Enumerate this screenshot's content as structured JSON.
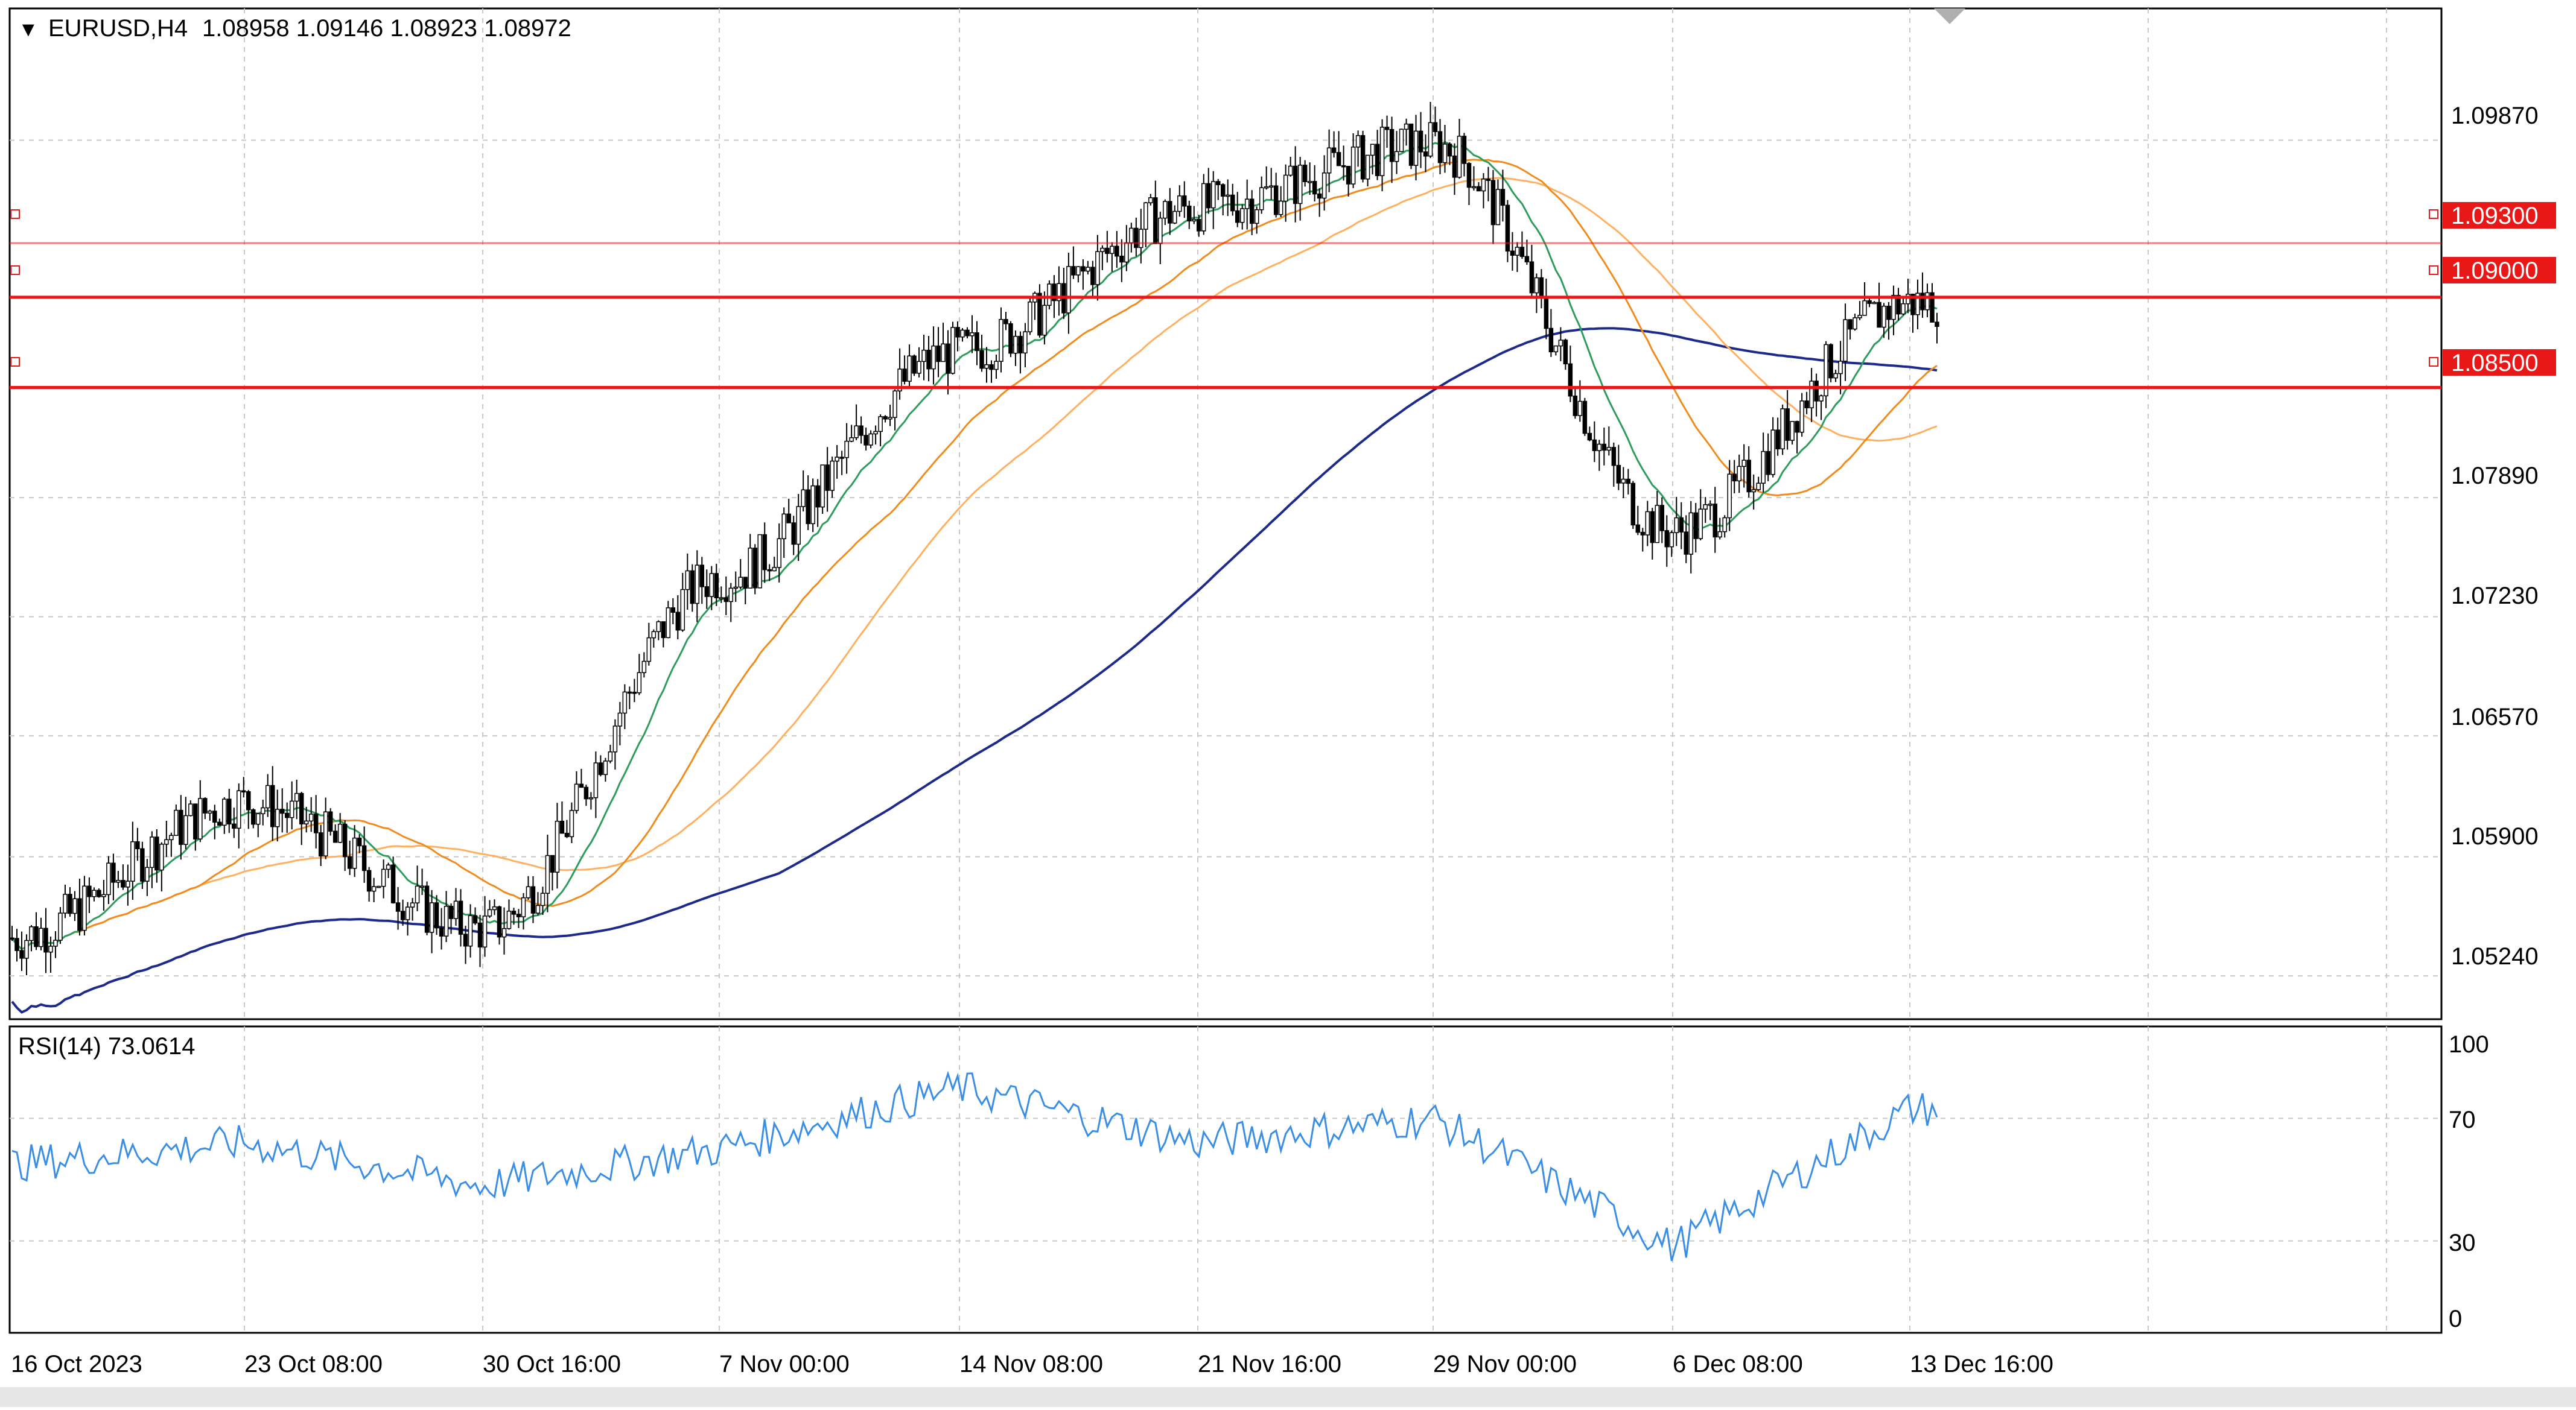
{
  "header": {
    "symbol": "EURUSD,H4",
    "ohlc": "1.08958 1.09146 1.08923 1.08972"
  },
  "rsi_header": {
    "label": "RSI(14) 73.0614"
  },
  "price_axis_labels": [
    "1.09870",
    "1.07890",
    "1.07230",
    "1.06570",
    "1.05900",
    "1.05240"
  ],
  "rsi_axis_labels": [
    "100",
    "70",
    "30",
    "0"
  ],
  "level_tags": [
    "1.09300",
    "1.09000",
    "1.08500"
  ],
  "time_axis_labels": [
    "16 Oct 2023",
    "23 Oct 08:00",
    "30 Oct 16:00",
    "7 Nov 00:00",
    "14 Nov 08:00",
    "21 Nov 16:00",
    "29 Nov 00:00",
    "6 Dec 08:00",
    "13 Dec 16:00"
  ],
  "colors": {
    "grid": "#c8c8c8",
    "candle": "#000000",
    "ma_fast": "#2e9c5c",
    "ma_mid": "#f08c1e",
    "ma_slow": "#ffb060",
    "ma_long": "#1c2a8c",
    "level": "#e81818",
    "rsi": "#3a8ee6"
  },
  "chart_data": [
    {
      "type": "line",
      "title": "EURUSD,H4",
      "ylim": [
        1.05,
        1.106
      ],
      "levels": [
        1.093,
        1.09,
        1.085
      ],
      "series": [
        {
          "name": "",
          "x": [
            "16 Oct 2023",
            "23 Oct 08:00",
            "30 Oct 16:00",
            "7 Nov 00:00",
            "14 Nov 08:00",
            "21 Nov 16:00",
            "29 Nov 00:00",
            "6 Dec 08:00",
            "13 Dec 16:00"
          ],
          "values": [
            1.0545,
            1.062,
            1.055,
            1.0745,
            1.087,
            1.095,
            1.0985,
            1.077,
            1.0897
          ]
        }
      ]
    },
    {
      "type": "line",
      "title": "RSI(14) 73.0614",
      "ylim": [
        0,
        100
      ],
      "levels": [
        70,
        30
      ],
      "series": [
        {
          "name": "",
          "x": [
            "16 Oct 2023",
            "23 Oct 08:00",
            "30 Oct 16:00",
            "7 Nov 00:00",
            "14 Nov 08:00",
            "21 Nov 16:00",
            "29 Nov 00:00",
            "6 Dec 08:00",
            "13 Dec 16:00"
          ],
          "values": [
            55,
            62,
            48,
            60,
            80,
            62,
            70,
            28,
            73
          ]
        }
      ]
    }
  ]
}
